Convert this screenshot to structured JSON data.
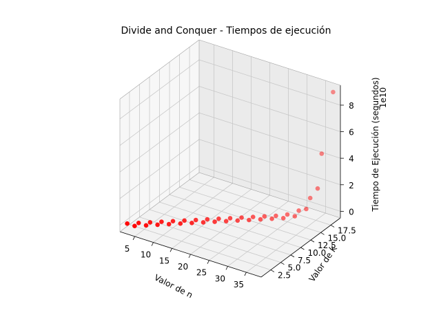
{
  "chart_data": {
    "type": "scatter",
    "title": "Divide and Conquer - Tiempos de ejecución",
    "xlabel": "Valor de n",
    "ylabel": "Valor de K",
    "zlabel": "Tiempo de Ejecución (segundos)",
    "xlim": [
      1,
      39
    ],
    "ylim": [
      0.1,
      19.9
    ],
    "zlim": [
      -0.5,
      9.5
    ],
    "x_ticks": [
      5,
      10,
      15,
      20,
      25,
      30,
      35
    ],
    "y_ticks": [
      2.5,
      5.0,
      7.5,
      10.0,
      12.5,
      15.0,
      17.5
    ],
    "y_tick_labels": [
      "2.5",
      "5.0",
      "7.5",
      "10.0",
      "12.5",
      "15.0",
      "17.5"
    ],
    "z_ticks": [
      0,
      2,
      4,
      6,
      8
    ],
    "z_offset_label": "1e10",
    "grid": true,
    "marker_color": "#ff0000",
    "series": [
      {
        "points": [
          {
            "n": 2,
            "k": 1,
            "t": 0.0
          },
          {
            "n": 4,
            "k": 1,
            "t": 0.0
          },
          {
            "n": 4,
            "k": 2,
            "t": 0.0
          },
          {
            "n": 6,
            "k": 2,
            "t": 0.0
          },
          {
            "n": 6,
            "k": 3,
            "t": 0.0
          },
          {
            "n": 8,
            "k": 3,
            "t": 0.0
          },
          {
            "n": 8,
            "k": 4,
            "t": 0.0
          },
          {
            "n": 10,
            "k": 4,
            "t": 0.0
          },
          {
            "n": 10,
            "k": 5,
            "t": 0.0
          },
          {
            "n": 12,
            "k": 5,
            "t": 0.0
          },
          {
            "n": 12,
            "k": 6,
            "t": 0.0
          },
          {
            "n": 14,
            "k": 6,
            "t": 0.0
          },
          {
            "n": 14,
            "k": 7,
            "t": 0.0
          },
          {
            "n": 16,
            "k": 7,
            "t": 0.0
          },
          {
            "n": 16,
            "k": 8,
            "t": 0.0
          },
          {
            "n": 18,
            "k": 8,
            "t": 0.0
          },
          {
            "n": 18,
            "k": 9,
            "t": 0.0
          },
          {
            "n": 20,
            "k": 9,
            "t": 0.0
          },
          {
            "n": 20,
            "k": 10,
            "t": 0.0
          },
          {
            "n": 22,
            "k": 10,
            "t": 0.0
          },
          {
            "n": 22,
            "k": 11,
            "t": 0.0
          },
          {
            "n": 24,
            "k": 11,
            "t": 0.0
          },
          {
            "n": 24,
            "k": 12,
            "t": 0.0
          },
          {
            "n": 26,
            "k": 12,
            "t": 0.0
          },
          {
            "n": 26,
            "k": 13,
            "t": 0.0
          },
          {
            "n": 28,
            "k": 13,
            "t": 0.0
          },
          {
            "n": 28,
            "k": 14,
            "t": 0.0
          },
          {
            "n": 30,
            "k": 14,
            "t": 0.0
          },
          {
            "n": 30,
            "k": 15,
            "t": 0.05
          },
          {
            "n": 32,
            "k": 15,
            "t": 0.1
          },
          {
            "n": 32,
            "k": 16,
            "t": 0.3
          },
          {
            "n": 34,
            "k": 16,
            "t": 0.6
          },
          {
            "n": 34,
            "k": 17,
            "t": 1.2
          },
          {
            "n": 36,
            "k": 17,
            "t": 2.1
          },
          {
            "n": 36,
            "k": 18,
            "t": 4.5
          },
          {
            "n": 38,
            "k": 19,
            "t": 9.1
          }
        ]
      }
    ]
  }
}
